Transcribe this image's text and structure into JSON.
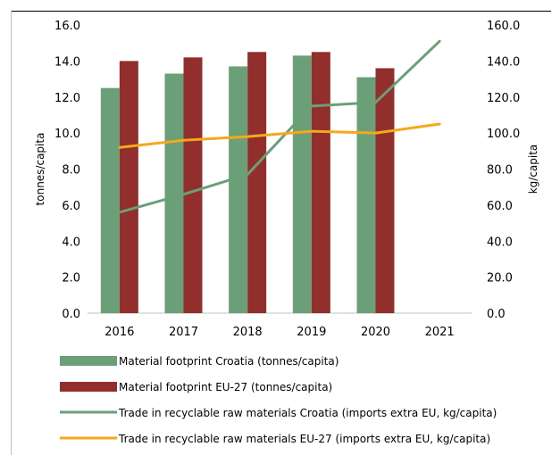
{
  "chart_data": {
    "type": "bar+line",
    "categories": [
      "2016",
      "2017",
      "2018",
      "2019",
      "2020",
      "2021"
    ],
    "y_left": {
      "label": "tonnes/capita",
      "ylim": [
        0,
        16
      ],
      "ticks": [
        "0.0",
        "2.0",
        "4.0",
        "6.0",
        "8.0",
        "10.0",
        "12.0",
        "14.0",
        "16.0"
      ]
    },
    "y_right": {
      "label": "kg/capita",
      "ylim": [
        0,
        160
      ],
      "ticks": [
        "0.0",
        "20.0",
        "40.0",
        "60.0",
        "80.0",
        "100.0",
        "120.0",
        "140.0",
        "160.0"
      ]
    },
    "series": [
      {
        "name": "Material footprint Croatia (tonnes/capita)",
        "kind": "bar",
        "axis": "left",
        "color": "#6a9f77",
        "values": [
          12.5,
          13.3,
          13.7,
          14.3,
          13.1,
          null
        ]
      },
      {
        "name": "Material footprint EU-27 (tonnes/capita)",
        "kind": "bar",
        "axis": "left",
        "color": "#922f2c",
        "values": [
          14.0,
          14.2,
          14.5,
          14.5,
          13.6,
          null
        ]
      },
      {
        "name": "Trade in recyclable raw materials Croatia (imports extra EU, kg/capita)",
        "kind": "line",
        "axis": "right",
        "color": "#6a9f77",
        "values": [
          56,
          66,
          77,
          115,
          117,
          151
        ]
      },
      {
        "name": "Trade in recyclable raw materials EU-27 (imports extra EU, kg/capita)",
        "kind": "line",
        "axis": "right",
        "color": "#f5a81c",
        "values": [
          92,
          96,
          98,
          101,
          100,
          105
        ]
      }
    ],
    "legend_position": "bottom",
    "grid": false
  }
}
